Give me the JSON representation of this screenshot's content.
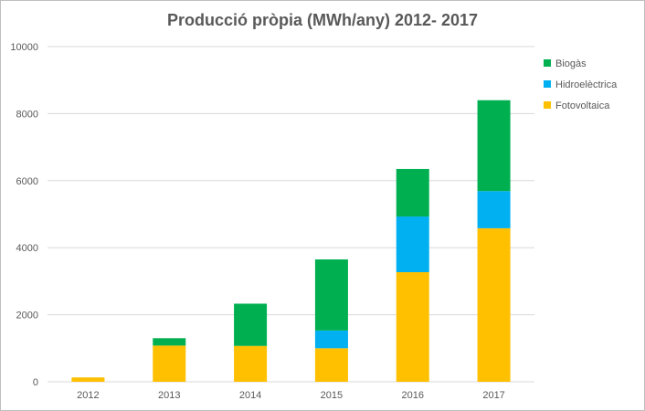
{
  "chart_data": {
    "type": "bar",
    "stacked": true,
    "title": "Producció pròpia (MWh/any) 2012- 2017",
    "categories": [
      "2012",
      "2013",
      "2014",
      "2015",
      "2016",
      "2017"
    ],
    "series": [
      {
        "name": "Fotovoltaica",
        "color": "#ffc000",
        "values": [
          130,
          1080,
          1070,
          1000,
          3270,
          4580
        ]
      },
      {
        "name": "Hidroelèctrica",
        "color": "#00b0f0",
        "values": [
          0,
          0,
          0,
          530,
          1660,
          1110
        ]
      },
      {
        "name": "Biogàs",
        "color": "#00b050",
        "values": [
          0,
          220,
          1260,
          2120,
          1420,
          2710
        ]
      }
    ],
    "ylim": [
      0,
      10000
    ],
    "yticks": [
      "0",
      "2000",
      "4000",
      "6000",
      "8000",
      "10000"
    ],
    "legend_order": [
      "Biogàs",
      "Hidroelèctrica",
      "Fotovoltaica"
    ],
    "legend_position": "right",
    "grid": true,
    "gridline_color": "#d9d9d9"
  }
}
